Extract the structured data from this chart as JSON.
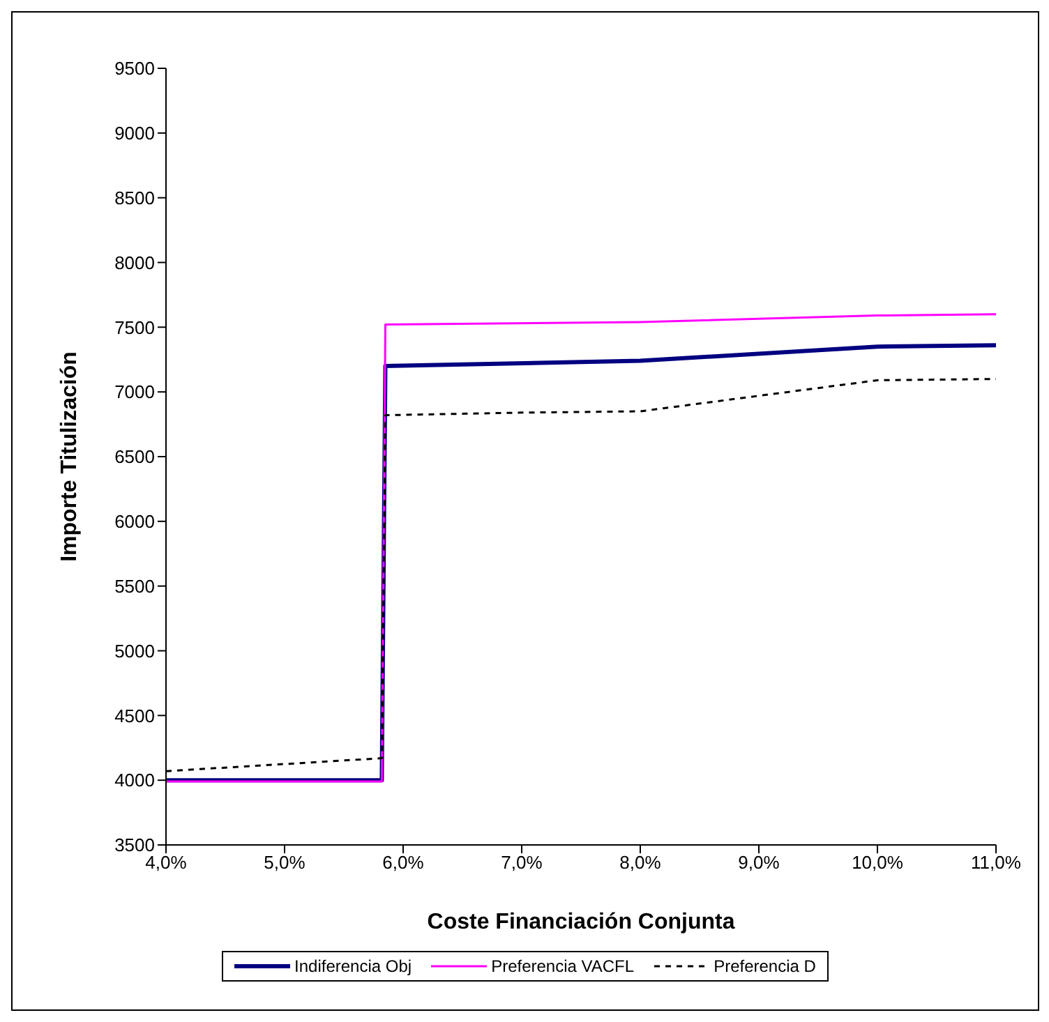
{
  "chart_data": {
    "type": "line",
    "xlabel": "Coste Financiación Conjunta",
    "ylabel": "Importe Titulización",
    "xlim": [
      4,
      11
    ],
    "ylim": [
      3500,
      9500
    ],
    "xticks": [
      {
        "value": 4,
        "label": "4,0%"
      },
      {
        "value": 5,
        "label": "5,0%"
      },
      {
        "value": 6,
        "label": "6,0%"
      },
      {
        "value": 7,
        "label": "7,0%"
      },
      {
        "value": 8,
        "label": "8,0%"
      },
      {
        "value": 9,
        "label": "9,0%"
      },
      {
        "value": 10,
        "label": "10,0%"
      },
      {
        "value": 11,
        "label": "11,0%"
      }
    ],
    "yticks": [
      3500,
      4000,
      4500,
      5000,
      5500,
      6000,
      6500,
      7000,
      7500,
      8000,
      8500,
      9000,
      9500
    ],
    "grid": false,
    "legend": "bottom",
    "marker": "none",
    "series": [
      {
        "name": "Indiferencia Obj",
        "color": "#000080",
        "line_style": "solid",
        "x": [
          4,
          5.82,
          5.85,
          8,
          10,
          11
        ],
        "values": [
          4000,
          4000,
          7200,
          7240,
          7350,
          7360
        ]
      },
      {
        "name": "Preferencia VACFL",
        "color": "#ff00ff",
        "line_style": "solid",
        "x": [
          4,
          5.82,
          5.85,
          8,
          10,
          11
        ],
        "values": [
          3990,
          3990,
          7520,
          7540,
          7590,
          7600
        ]
      },
      {
        "name": "Preferencia D",
        "color": "#000000",
        "line_style": "dashed",
        "x": [
          4,
          5.82,
          5.85,
          7,
          8,
          10,
          11
        ],
        "values": [
          4070,
          4170,
          6820,
          6840,
          6850,
          7090,
          7100
        ]
      }
    ]
  }
}
